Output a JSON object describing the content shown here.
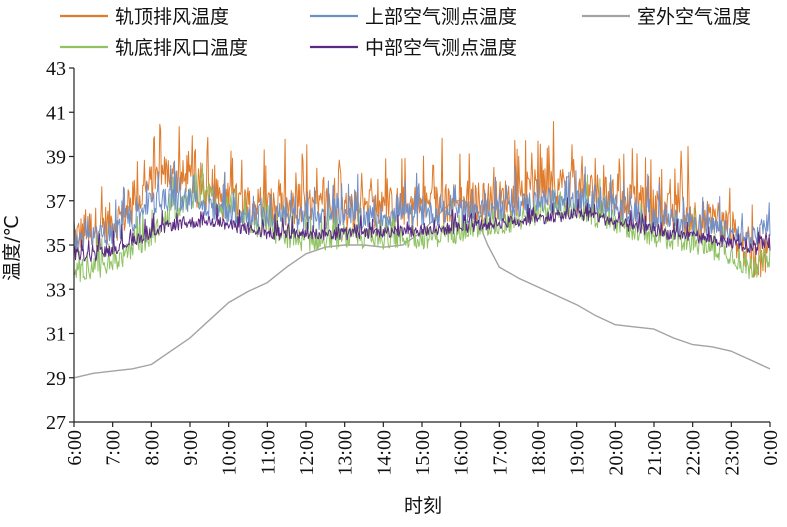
{
  "chart_data": {
    "type": "line",
    "xlabel": "时刻",
    "ylabel": "温度/℃",
    "ylim": [
      27,
      43
    ],
    "yticks": [
      "27",
      "29",
      "31",
      "33",
      "35",
      "37",
      "39",
      "41",
      "43"
    ],
    "xticks": [
      "6:00",
      "7:00",
      "8:00",
      "9:00",
      "10:00",
      "11:00",
      "12:00",
      "13:00",
      "14:00",
      "15:00",
      "16:00",
      "17:00",
      "18:00",
      "19:00",
      "20:00",
      "21:00",
      "22:00",
      "23:00",
      "0:00"
    ],
    "x_range_hours": [
      6,
      24
    ],
    "grid": false,
    "legend_position": "top",
    "series": [
      {
        "name": "轨顶排风温度",
        "color": "#E07B2B",
        "style": "noisy",
        "values": [
          [
            6.0,
            35.3
          ],
          [
            6.5,
            35.8
          ],
          [
            7.0,
            36.0
          ],
          [
            7.5,
            36.6
          ],
          [
            8.0,
            37.8
          ],
          [
            8.3,
            38.2
          ],
          [
            8.6,
            38.2
          ],
          [
            9.0,
            37.7
          ],
          [
            9.5,
            37.3
          ],
          [
            10.0,
            36.9
          ],
          [
            10.5,
            36.9
          ],
          [
            11.0,
            36.6
          ],
          [
            12.0,
            36.6
          ],
          [
            13.0,
            36.6
          ],
          [
            14.0,
            36.7
          ],
          [
            15.0,
            36.8
          ],
          [
            16.0,
            36.9
          ],
          [
            17.0,
            37.0
          ],
          [
            17.5,
            37.3
          ],
          [
            18.0,
            37.5
          ],
          [
            18.5,
            37.7
          ],
          [
            19.0,
            37.4
          ],
          [
            19.5,
            37.4
          ],
          [
            20.0,
            37.0
          ],
          [
            21.0,
            36.6
          ],
          [
            22.0,
            36.3
          ],
          [
            23.0,
            35.7
          ],
          [
            23.5,
            34.4
          ],
          [
            23.9,
            34.5
          ],
          [
            24.0,
            34.6
          ]
        ]
      },
      {
        "name": "上部空气测点温度",
        "color": "#6F8FC8",
        "style": "noisy",
        "values": [
          [
            6.0,
            35.1
          ],
          [
            6.5,
            35.3
          ],
          [
            7.0,
            35.6
          ],
          [
            7.5,
            36.1
          ],
          [
            8.0,
            36.9
          ],
          [
            8.5,
            37.1
          ],
          [
            9.0,
            37.0
          ],
          [
            9.5,
            36.7
          ],
          [
            10.0,
            36.4
          ],
          [
            11.0,
            36.3
          ],
          [
            12.0,
            36.2
          ],
          [
            13.0,
            36.2
          ],
          [
            14.0,
            36.3
          ],
          [
            15.0,
            36.4
          ],
          [
            16.0,
            36.5
          ],
          [
            17.0,
            36.6
          ],
          [
            17.5,
            36.8
          ],
          [
            18.0,
            37.0
          ],
          [
            18.5,
            37.0
          ],
          [
            19.0,
            36.9
          ],
          [
            19.5,
            36.9
          ],
          [
            20.0,
            36.6
          ],
          [
            21.0,
            36.2
          ],
          [
            22.0,
            36.0
          ],
          [
            23.0,
            35.5
          ],
          [
            23.5,
            35.2
          ],
          [
            23.9,
            35.9
          ],
          [
            24.0,
            35.9
          ]
        ]
      },
      {
        "name": "室外空气温度",
        "color": "#A3A3A3",
        "style": "smooth",
        "values": [
          [
            6.0,
            29.0
          ],
          [
            6.5,
            29.2
          ],
          [
            7.0,
            29.3
          ],
          [
            7.5,
            29.4
          ],
          [
            8.0,
            29.6
          ],
          [
            8.5,
            30.2
          ],
          [
            9.0,
            30.8
          ],
          [
            9.5,
            31.6
          ],
          [
            10.0,
            32.4
          ],
          [
            10.5,
            32.9
          ],
          [
            11.0,
            33.3
          ],
          [
            11.5,
            34.0
          ],
          [
            12.0,
            34.6
          ],
          [
            12.5,
            34.9
          ],
          [
            13.0,
            35.0
          ],
          [
            13.5,
            35.0
          ],
          [
            14.0,
            34.9
          ],
          [
            14.5,
            35.0
          ],
          [
            15.0,
            35.6
          ],
          [
            15.5,
            36.5
          ],
          [
            15.8,
            37.0
          ],
          [
            16.1,
            37.0
          ],
          [
            16.4,
            36.3
          ],
          [
            16.7,
            35.0
          ],
          [
            17.0,
            34.0
          ],
          [
            17.5,
            33.5
          ],
          [
            18.0,
            33.1
          ],
          [
            18.5,
            32.7
          ],
          [
            19.0,
            32.3
          ],
          [
            19.5,
            31.8
          ],
          [
            20.0,
            31.4
          ],
          [
            20.5,
            31.3
          ],
          [
            21.0,
            31.2
          ],
          [
            21.5,
            30.8
          ],
          [
            22.0,
            30.5
          ],
          [
            22.5,
            30.4
          ],
          [
            23.0,
            30.2
          ],
          [
            23.5,
            29.8
          ],
          [
            24.0,
            29.4
          ]
        ]
      },
      {
        "name": "轨底排风口温度",
        "color": "#8FC262",
        "style": "noisy",
        "values": [
          [
            6.0,
            33.8
          ],
          [
            6.5,
            33.9
          ],
          [
            7.0,
            34.2
          ],
          [
            7.5,
            34.7
          ],
          [
            8.0,
            35.4
          ],
          [
            8.5,
            36.4
          ],
          [
            9.0,
            37.1
          ],
          [
            9.5,
            37.3
          ],
          [
            10.0,
            36.5
          ],
          [
            10.5,
            36.0
          ],
          [
            11.0,
            35.6
          ],
          [
            11.5,
            35.3
          ],
          [
            12.0,
            35.2
          ],
          [
            13.0,
            35.3
          ],
          [
            14.0,
            35.3
          ],
          [
            15.0,
            35.3
          ],
          [
            16.0,
            35.6
          ],
          [
            17.0,
            35.9
          ],
          [
            18.0,
            36.4
          ],
          [
            18.5,
            36.6
          ],
          [
            19.0,
            36.6
          ],
          [
            19.5,
            36.3
          ],
          [
            20.0,
            35.9
          ],
          [
            21.0,
            35.4
          ],
          [
            22.0,
            35.1
          ],
          [
            23.0,
            34.6
          ],
          [
            23.5,
            33.8
          ],
          [
            23.9,
            34.4
          ],
          [
            24.0,
            34.5
          ]
        ]
      },
      {
        "name": "中部空气测点温度",
        "color": "#5A2A82",
        "style": "noisy",
        "values": [
          [
            6.0,
            34.6
          ],
          [
            6.5,
            34.5
          ],
          [
            7.0,
            34.8
          ],
          [
            7.5,
            35.2
          ],
          [
            8.0,
            35.5
          ],
          [
            8.5,
            35.9
          ],
          [
            9.0,
            36.0
          ],
          [
            9.5,
            36.1
          ],
          [
            10.0,
            35.9
          ],
          [
            10.5,
            35.7
          ],
          [
            11.0,
            35.5
          ],
          [
            12.0,
            35.5
          ],
          [
            13.0,
            35.5
          ],
          [
            14.0,
            35.6
          ],
          [
            15.0,
            35.6
          ],
          [
            16.0,
            35.8
          ],
          [
            17.0,
            36.0
          ],
          [
            18.0,
            36.2
          ],
          [
            18.5,
            36.3
          ],
          [
            19.0,
            36.4
          ],
          [
            19.5,
            36.3
          ],
          [
            20.0,
            36.0
          ],
          [
            21.0,
            35.6
          ],
          [
            22.0,
            35.4
          ],
          [
            23.0,
            35.1
          ],
          [
            23.5,
            34.7
          ],
          [
            23.9,
            35.1
          ],
          [
            24.0,
            35.0
          ]
        ]
      }
    ]
  }
}
